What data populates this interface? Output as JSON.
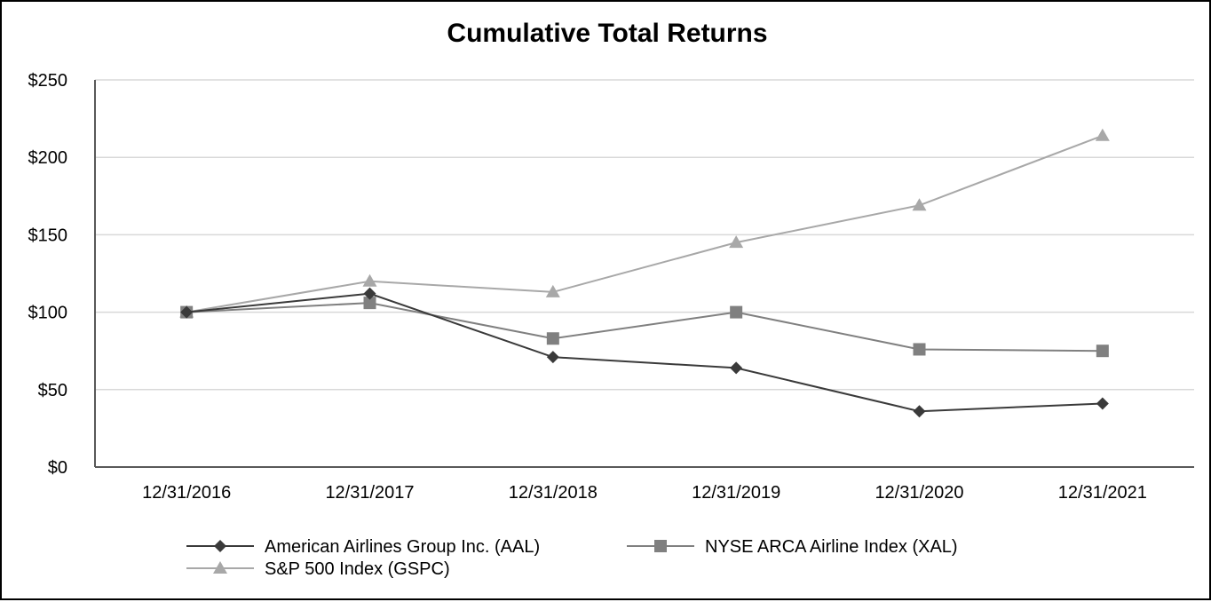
{
  "chart_data": {
    "type": "line",
    "title": "Cumulative Total Returns",
    "xlabel": "",
    "ylabel": "",
    "categories": [
      "12/31/2016",
      "12/31/2017",
      "12/31/2018",
      "12/31/2019",
      "12/31/2020",
      "12/31/2021"
    ],
    "ylim": [
      0,
      250
    ],
    "y_ticks": [
      0,
      50,
      100,
      150,
      200,
      250
    ],
    "y_tick_labels": [
      "$0",
      "$50",
      "$100",
      "$150",
      "$200",
      "$250"
    ],
    "grid": true,
    "legend_position": "bottom",
    "series": [
      {
        "name": "American Airlines Group Inc. (AAL)",
        "marker": "diamond",
        "color": "#3a3a3a",
        "values": [
          100,
          112,
          71,
          64,
          36,
          41
        ]
      },
      {
        "name": "NYSE ARCA Airline Index (XAL)",
        "marker": "square",
        "color": "#808080",
        "values": [
          100,
          106,
          83,
          100,
          76,
          75
        ]
      },
      {
        "name": "S&P 500 Index (GSPC)",
        "marker": "triangle",
        "color": "#a8a8a8",
        "values": [
          100,
          120,
          113,
          145,
          169,
          214
        ]
      }
    ]
  }
}
